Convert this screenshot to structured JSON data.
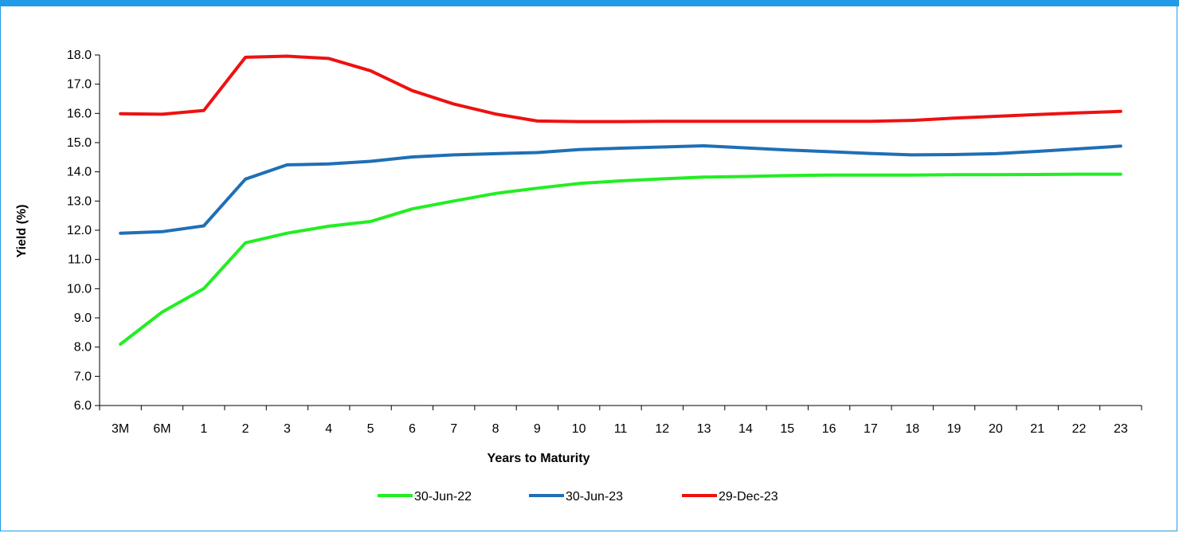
{
  "chart_data": {
    "type": "line",
    "title": "",
    "xlabel": "Years to Maturity",
    "ylabel": "Yield (%)",
    "ylim": [
      6.0,
      18.0
    ],
    "yticks": [
      "6.0",
      "7.0",
      "8.0",
      "9.0",
      "10.0",
      "11.0",
      "12.0",
      "13.0",
      "14.0",
      "15.0",
      "16.0",
      "17.0",
      "18.0"
    ],
    "categories": [
      "3M",
      "6M",
      "1",
      "2",
      "3",
      "4",
      "5",
      "6",
      "7",
      "8",
      "9",
      "10",
      "11",
      "12",
      "13",
      "14",
      "15",
      "16",
      "17",
      "18",
      "19",
      "20",
      "21",
      "22",
      "23"
    ],
    "grid": false,
    "legend_position": "bottom",
    "series": [
      {
        "name": "30-Jun-22",
        "color": "#22ee22",
        "values": [
          8.1,
          9.2,
          10.0,
          11.57,
          11.9,
          12.14,
          12.3,
          12.73,
          13.0,
          13.26,
          13.44,
          13.6,
          13.69,
          13.76,
          13.82,
          13.84,
          13.87,
          13.89,
          13.89,
          13.89,
          13.9,
          13.9,
          13.91,
          13.92,
          13.92
        ]
      },
      {
        "name": "30-Jun-23",
        "color": "#1f6fb5",
        "values": [
          11.9,
          11.95,
          12.15,
          13.75,
          14.24,
          14.27,
          14.36,
          14.51,
          14.58,
          14.62,
          14.66,
          14.76,
          14.81,
          14.85,
          14.89,
          14.82,
          14.75,
          14.69,
          14.63,
          14.58,
          14.59,
          14.62,
          14.7,
          14.79,
          14.88
        ]
      },
      {
        "name": "29-Dec-23",
        "color": "#ee1111",
        "values": [
          15.99,
          15.97,
          16.1,
          17.92,
          17.96,
          17.88,
          17.46,
          16.78,
          16.32,
          15.98,
          15.74,
          15.72,
          15.72,
          15.73,
          15.73,
          15.73,
          15.73,
          15.73,
          15.73,
          15.76,
          15.84,
          15.9,
          15.96,
          16.02,
          16.07
        ]
      }
    ]
  }
}
